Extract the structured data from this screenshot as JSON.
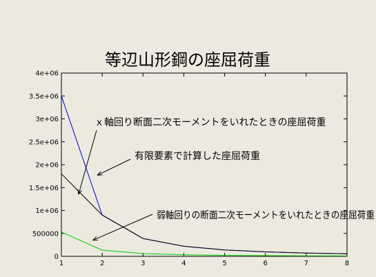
{
  "chart_data": {
    "type": "line",
    "title": "等辺山形鋼の座屈荷重",
    "xlabel": "",
    "ylabel": "",
    "xlim": [
      1,
      8
    ],
    "ylim": [
      0,
      4000000
    ],
    "x_ticks": [
      1,
      2,
      3,
      4,
      5,
      6,
      7,
      8
    ],
    "y_ticks": [
      0,
      500000,
      1000000,
      1500000,
      2000000,
      2500000,
      3000000,
      3500000,
      4000000
    ],
    "y_tick_labels": [
      "0",
      "500000",
      "1e+06",
      "1.5e+06",
      "2e+06",
      "2.5e+06",
      "3e+06",
      "3.5e+06",
      "4e+06"
    ],
    "grid": false,
    "legend": "none",
    "x": [
      1,
      2,
      3,
      4,
      5,
      6,
      7,
      8
    ],
    "series": [
      {
        "color": "#0000cc",
        "values": [
          3500000,
          900000,
          390000,
          220000,
          140000,
          97000,
          72000,
          55000
        ]
      },
      {
        "color": "#000000",
        "values": [
          1800000,
          900000,
          390000,
          220000,
          140000,
          97000,
          72000,
          55000
        ]
      },
      {
        "color": "#00cc00",
        "values": [
          530000,
          135000,
          60000,
          34000,
          22000,
          15000,
          11000,
          8500
        ]
      }
    ],
    "annotations": [
      {
        "text": "ｘ軸回り断面二次モーメントをいれたときの座屈荷重",
        "arrow_to": [
          1.42,
          1350000
        ]
      },
      {
        "text": "有限要素で計算した座屈荷重",
        "arrow_to": [
          1.88,
          1770000
        ]
      },
      {
        "text": "弱軸回りの断面二次モーメントをいれたときの座屈荷重",
        "arrow_to": [
          1.77,
          350000
        ]
      }
    ]
  }
}
